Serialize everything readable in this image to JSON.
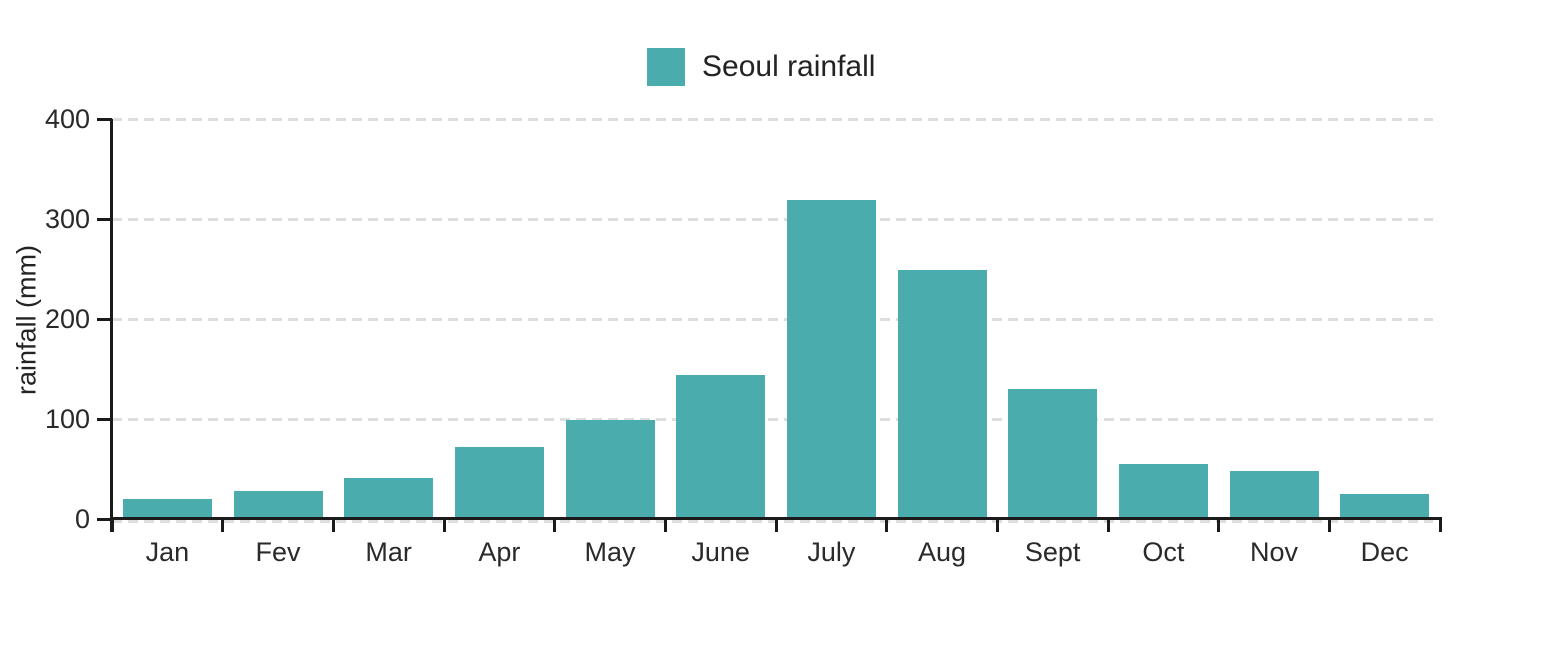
{
  "legend": {
    "label": "Seoul rainfall"
  },
  "colors": {
    "bar": "#4BACAD",
    "axis": "#1b1b1b",
    "grid": "#dedede",
    "text": "#2a2a2a"
  },
  "chart_data": {
    "type": "bar",
    "title": "Seoul rainfall",
    "categories": [
      "Jan",
      "Fev",
      "Mar",
      "Apr",
      "May",
      "June",
      "July",
      "Aug",
      "Sept",
      "Oct",
      "Nov",
      "Dec"
    ],
    "values": [
      20,
      28,
      41,
      72,
      99,
      144,
      319,
      249,
      130,
      55,
      48,
      25
    ],
    "series": [
      {
        "name": "Seoul rainfall",
        "values": [
          20,
          28,
          41,
          72,
          99,
          144,
          319,
          249,
          130,
          55,
          48,
          25
        ]
      }
    ],
    "xlabel": "",
    "ylabel": "rainfall (mm)",
    "ylim": [
      0,
      400
    ],
    "yticks": [
      0,
      100,
      200,
      300,
      400
    ],
    "grid": "horizontal-dashed",
    "legend_position": "top-center",
    "bar_color": "#4BACAD"
  }
}
